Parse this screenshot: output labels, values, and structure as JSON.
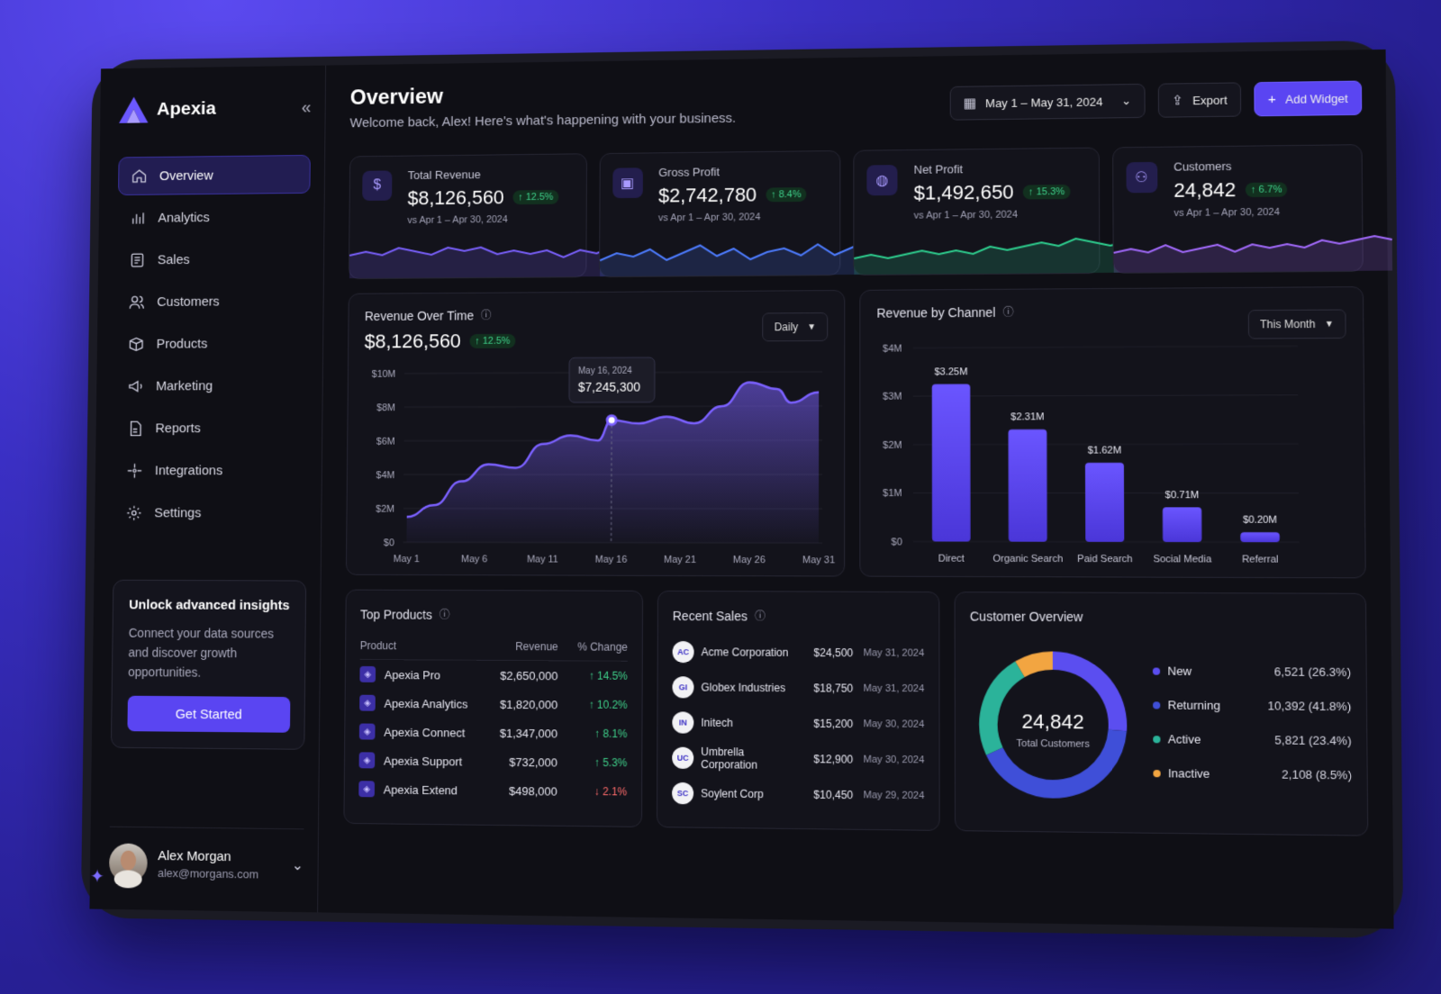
{
  "brand": {
    "name": "Apexia"
  },
  "sidebar": {
    "items": [
      {
        "label": "Overview",
        "icon": "home-icon",
        "active": true
      },
      {
        "label": "Analytics",
        "icon": "bar-chart-icon"
      },
      {
        "label": "Sales",
        "icon": "receipt-icon"
      },
      {
        "label": "Customers",
        "icon": "users-icon"
      },
      {
        "label": "Products",
        "icon": "box-icon"
      },
      {
        "label": "Marketing",
        "icon": "megaphone-icon"
      },
      {
        "label": "Reports",
        "icon": "file-icon"
      },
      {
        "label": "Integrations",
        "icon": "sparkle-plug-icon"
      },
      {
        "label": "Settings",
        "icon": "gear-icon"
      }
    ],
    "promo": {
      "title": "Unlock advanced insights",
      "text": "Connect your data sources and discover growth opportunities.",
      "button": "Get Started"
    },
    "user": {
      "name": "Alex Morgan",
      "email": "alex@morgans.com"
    }
  },
  "header": {
    "title": "Overview",
    "subtitle": "Welcome back, Alex! Here's what's happening with your business.",
    "date_range": "May 1 – May 31, 2024",
    "export": "Export",
    "add_widget": "Add Widget"
  },
  "kpis": [
    {
      "label": "Total Revenue",
      "value": "$8,126,560",
      "change": "↑ 12.5%",
      "compare": "vs Apr 1 – Apr 30, 2024",
      "icon": "dollar-icon",
      "color": "#7b61ff"
    },
    {
      "label": "Gross Profit",
      "value": "$2,742,780",
      "change": "↑ 8.4%",
      "compare": "vs Apr 1 – Apr 30, 2024",
      "icon": "wallet-icon",
      "color": "#4d7cff"
    },
    {
      "label": "Net Profit",
      "value": "$1,492,650",
      "change": "↑ 15.3%",
      "compare": "vs Apr 1 – Apr 30, 2024",
      "icon": "bag-icon",
      "color": "#2ecf8f"
    },
    {
      "label": "Customers",
      "value": "24,842",
      "change": "↑ 6.7%",
      "compare": "vs Apr 1 – Apr 30, 2024",
      "icon": "users-icon",
      "color": "#a46bff"
    }
  ],
  "revenue_over_time": {
    "title": "Revenue Over Time",
    "value": "$8,126,560",
    "change": "↑ 12.5%",
    "period": "Daily",
    "tooltip": {
      "date": "May 16, 2024",
      "value": "$7,245,300"
    }
  },
  "revenue_by_channel": {
    "title": "Revenue by Channel",
    "period": "This Month"
  },
  "chart_data": [
    {
      "type": "area",
      "title": "Revenue Over Time",
      "x": [
        "May 1",
        "May 3",
        "May 5",
        "May 7",
        "May 9",
        "May 11",
        "May 13",
        "May 15",
        "May 16",
        "May 18",
        "May 20",
        "May 22",
        "May 24",
        "May 26",
        "May 28",
        "May 29",
        "May 31"
      ],
      "x_ticks": [
        "May 1",
        "May 6",
        "May 11",
        "May 16",
        "May 21",
        "May 26",
        "May 31"
      ],
      "values": [
        1.5,
        2.2,
        3.6,
        4.6,
        4.4,
        5.8,
        6.3,
        6.0,
        7.2,
        7.0,
        7.4,
        7.0,
        8.0,
        9.4,
        9.0,
        8.2,
        8.8
      ],
      "unit": "$M",
      "y_ticks": [
        "$0",
        "$2M",
        "$4M",
        "$6M",
        "$8M",
        "$10M"
      ],
      "ylim": [
        0,
        10
      ],
      "color": "#7b61ff"
    },
    {
      "type": "bar",
      "title": "Revenue by Channel",
      "categories": [
        "Direct",
        "Organic Search",
        "Paid Search",
        "Social Media",
        "Referral"
      ],
      "values": [
        3.25,
        2.31,
        1.62,
        0.71,
        0.2
      ],
      "labels": [
        "$3.25M",
        "$2.31M",
        "$1.62M",
        "$0.71M",
        "$0.20M"
      ],
      "y_ticks": [
        "$0",
        "$1M",
        "$2M",
        "$3M",
        "$4M"
      ],
      "ylim": [
        0,
        4
      ],
      "color": "#5a45f2"
    },
    {
      "type": "pie",
      "title": "Customer Overview",
      "center_value": "24,842",
      "center_label": "Total Customers",
      "slices": [
        {
          "name": "New",
          "value": 6521,
          "display": "6,521 (26.3%)",
          "color": "#5b4ef0"
        },
        {
          "name": "Returning",
          "value": 10392,
          "display": "10,392 (41.8%)",
          "color": "#3f4fd8"
        },
        {
          "name": "Active",
          "value": 5821,
          "display": "5,821 (23.4%)",
          "color": "#2bb39a"
        },
        {
          "name": "Inactive",
          "value": 2108,
          "display": "2,108 (8.5%)",
          "color": "#f2a541"
        }
      ]
    }
  ],
  "top_products": {
    "title": "Top Products",
    "headers": [
      "Product",
      "Revenue",
      "% Change"
    ],
    "rows": [
      {
        "name": "Apexia Pro",
        "revenue": "$2,650,000",
        "change": "↑ 14.5%",
        "dir": "up"
      },
      {
        "name": "Apexia Analytics",
        "revenue": "$1,820,000",
        "change": "↑ 10.2%",
        "dir": "up"
      },
      {
        "name": "Apexia Connect",
        "revenue": "$1,347,000",
        "change": "↑ 8.1%",
        "dir": "up"
      },
      {
        "name": "Apexia Support",
        "revenue": "$732,000",
        "change": "↑ 5.3%",
        "dir": "up"
      },
      {
        "name": "Apexia Extend",
        "revenue": "$498,000",
        "change": "↓ 2.1%",
        "dir": "down"
      }
    ]
  },
  "recent_sales": {
    "title": "Recent Sales",
    "rows": [
      {
        "initials": "AC",
        "name": "Acme Corporation",
        "amount": "$24,500",
        "date": "May 31, 2024"
      },
      {
        "initials": "GI",
        "name": "Globex Industries",
        "amount": "$18,750",
        "date": "May 31, 2024"
      },
      {
        "initials": "IN",
        "name": "Initech",
        "amount": "$15,200",
        "date": "May 30, 2024"
      },
      {
        "initials": "UC",
        "name": "Umbrella Corporation",
        "amount": "$12,900",
        "date": "May 30, 2024"
      },
      {
        "initials": "SC",
        "name": "Soylent Corp",
        "amount": "$10,450",
        "date": "May 29, 2024"
      }
    ]
  },
  "customer_overview": {
    "title": "Customer Overview"
  }
}
